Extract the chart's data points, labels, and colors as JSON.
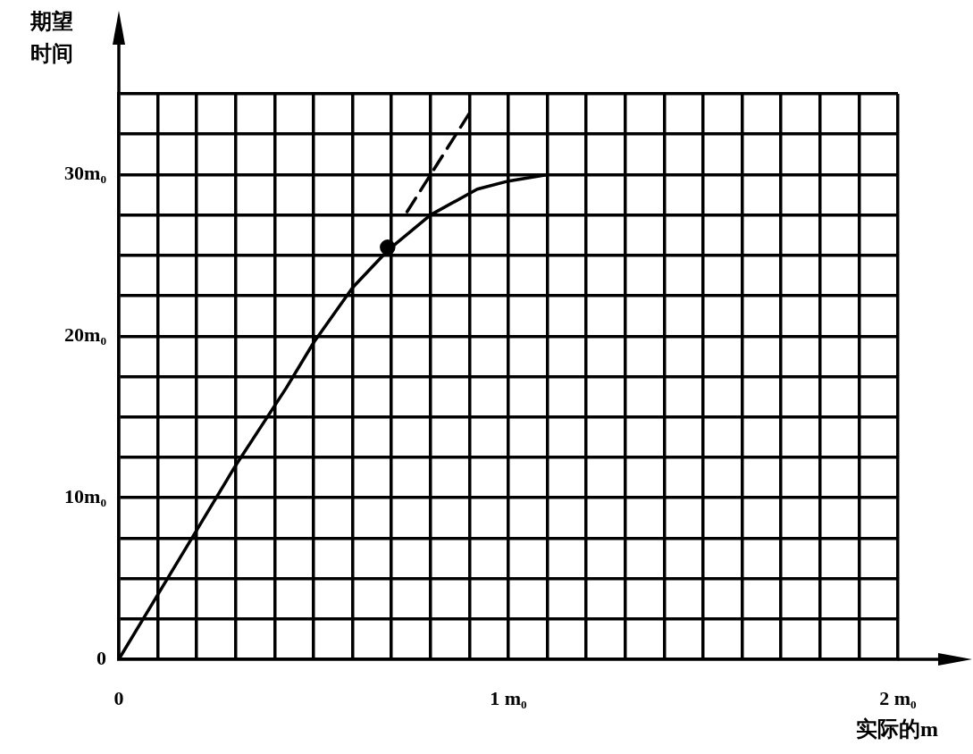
{
  "chart_data": {
    "type": "line",
    "xlabel": "实际的m",
    "ylabel": "期望时间",
    "xlim": [
      0,
      2
    ],
    "ylim": [
      0,
      35
    ],
    "xticks": [
      0,
      {
        "value": 0.1,
        "label": null
      },
      {
        "value": 0.2,
        "label": null
      },
      {
        "value": 0.3,
        "label": null
      },
      {
        "value": 0.4,
        "label": null
      },
      {
        "value": 0.5,
        "label": null
      },
      {
        "value": 0.6,
        "label": null
      },
      {
        "value": 0.7,
        "label": null
      },
      {
        "value": 0.8,
        "label": null
      },
      {
        "value": 0.9,
        "label": null
      },
      {
        "value": 1,
        "label": "1 m₀"
      },
      {
        "value": 1.1,
        "label": null
      },
      {
        "value": 1.2,
        "label": null
      },
      {
        "value": 1.3,
        "label": null
      },
      {
        "value": 1.4,
        "label": null
      },
      {
        "value": 1.5,
        "label": null
      },
      {
        "value": 1.6,
        "label": null
      },
      {
        "value": 1.7,
        "label": null
      },
      {
        "value": 1.8,
        "label": null
      },
      {
        "value": 1.9,
        "label": null
      },
      {
        "value": 2,
        "label": "2 m₀"
      }
    ],
    "yticks": [
      0,
      {
        "value": 2.5,
        "label": null
      },
      {
        "value": 5,
        "label": null
      },
      {
        "value": 7.5,
        "label": null
      },
      {
        "value": 10,
        "label": "10m₀"
      },
      {
        "value": 12.5,
        "label": null
      },
      {
        "value": 15,
        "label": null
      },
      {
        "value": 17.5,
        "label": null
      },
      {
        "value": 20,
        "label": "20m₀"
      },
      {
        "value": 22.5,
        "label": null
      },
      {
        "value": 25,
        "label": null
      },
      {
        "value": 27.5,
        "label": null
      },
      {
        "value": 30,
        "label": "30m₀"
      },
      {
        "value": 32.5,
        "label": null
      },
      {
        "value": 35,
        "label": null
      }
    ],
    "grid": true,
    "legend": false,
    "series": [
      {
        "color": "#000000",
        "line_style": "solid",
        "marker": "none",
        "x": [
          0,
          0.1,
          0.2,
          0.3,
          0.43,
          0.5,
          0.6,
          0.69,
          0.8,
          0.92,
          1.0,
          1.1
        ],
        "values": [
          0,
          4,
          8,
          12,
          16.8,
          19.6,
          23,
          25.3,
          27.5,
          29.1,
          29.6,
          30
        ]
      },
      {
        "color": "#000000",
        "line_style": "dashed",
        "marker": "none",
        "x": [
          0.74,
          0.9
        ],
        "values": [
          27.7,
          33.8
        ]
      },
      {
        "type": "scatter",
        "color": "#000000",
        "marker": "circle",
        "x": [
          0.69
        ],
        "values": [
          25.5
        ]
      }
    ]
  }
}
